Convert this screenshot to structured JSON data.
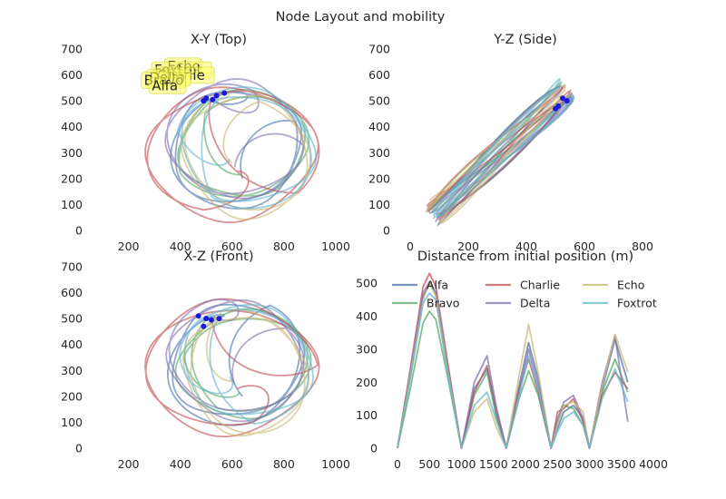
{
  "figure": {
    "title": "Node Layout and mobility"
  },
  "colors": {
    "Alfa": "#4c72b0",
    "Bravo": "#55a868",
    "Charlie": "#c44e52",
    "Delta": "#8172b2",
    "Echo": "#ccb974",
    "Foxtrot": "#64b5cd",
    "marker": "#1a1adf",
    "tag_fill": "#ffff66",
    "tag_edge": "#d8d840"
  },
  "chart_data": [
    {
      "type": "line",
      "panel": "xy",
      "title": "X-Y (Top)",
      "xlim": [
        100,
        1000
      ],
      "ylim": [
        0,
        700
      ],
      "xticks": [
        "200",
        "400",
        "600",
        "800",
        "1000"
      ],
      "yticks": [
        "0",
        "100",
        "200",
        "300",
        "400",
        "500",
        "600",
        "700"
      ],
      "grid": false,
      "tags": [
        {
          "label": "Echo",
          "x": 560,
          "y": 585
        },
        {
          "label": "Foxtrot",
          "x": 510,
          "y": 570
        },
        {
          "label": "Charlie",
          "x": 520,
          "y": 550
        },
        {
          "label": "Delta",
          "x": 490,
          "y": 540
        },
        {
          "label": "Bravo",
          "x": 470,
          "y": 530
        },
        {
          "label": "Alfa",
          "x": 500,
          "y": 510
        }
      ],
      "markers": [
        {
          "x": 570,
          "y": 530
        },
        {
          "x": 540,
          "y": 520
        },
        {
          "x": 500,
          "y": 510
        },
        {
          "x": 525,
          "y": 505
        },
        {
          "x": 490,
          "y": 500
        }
      ]
    },
    {
      "type": "line",
      "panel": "yz",
      "title": "Y-Z (Side)",
      "xlim": [
        0,
        800
      ],
      "ylim": [
        0,
        700
      ],
      "xticks": [
        "0",
        "200",
        "400",
        "600",
        "800"
      ],
      "yticks": [
        "0",
        "100",
        "200",
        "300",
        "400",
        "500",
        "600",
        "700"
      ],
      "grid": false,
      "markers": [
        {
          "x": 540,
          "y": 500
        },
        {
          "x": 510,
          "y": 480
        },
        {
          "x": 525,
          "y": 510
        },
        {
          "x": 500,
          "y": 470
        }
      ]
    },
    {
      "type": "line",
      "panel": "xz",
      "title": "X-Z (Front)",
      "xlim": [
        100,
        1000
      ],
      "ylim": [
        0,
        700
      ],
      "xticks": [
        "200",
        "400",
        "600",
        "800",
        "1000"
      ],
      "yticks": [
        "0",
        "100",
        "200",
        "300",
        "400",
        "500",
        "600",
        "700"
      ],
      "grid": false,
      "markers": [
        {
          "x": 470,
          "y": 510
        },
        {
          "x": 500,
          "y": 500
        },
        {
          "x": 520,
          "y": 495
        },
        {
          "x": 490,
          "y": 470
        },
        {
          "x": 550,
          "y": 500
        }
      ]
    },
    {
      "type": "line",
      "panel": "dist",
      "title": "Distance from initial position (m)",
      "xlim": [
        0,
        4000
      ],
      "ylim": [
        0,
        550
      ],
      "xticks": [
        "0",
        "500",
        "1000",
        "1500",
        "2000",
        "2500",
        "3000",
        "3500",
        "4000"
      ],
      "yticks": [
        "0",
        "100",
        "200",
        "300",
        "400",
        "500"
      ],
      "grid": false,
      "legend": "top, 3 columns",
      "legend_order": [
        "Alfa",
        "Charlie",
        "Echo",
        "Bravo",
        "Delta",
        "Foxtrot"
      ],
      "x": [
        0,
        200,
        400,
        500,
        600,
        800,
        1000,
        1200,
        1400,
        1550,
        1700,
        1900,
        2050,
        2200,
        2400,
        2500,
        2600,
        2750,
        2900,
        3000,
        3200,
        3400,
        3600
      ],
      "series": [
        {
          "name": "Alfa",
          "values": [
            0,
            220,
            460,
            500,
            470,
            230,
            0,
            180,
            240,
            100,
            0,
            190,
            320,
            210,
            0,
            60,
            110,
            130,
            90,
            0,
            180,
            330,
            200
          ]
        },
        {
          "name": "Bravo",
          "values": [
            0,
            180,
            380,
            415,
            390,
            200,
            0,
            160,
            230,
            90,
            0,
            150,
            235,
            160,
            0,
            80,
            130,
            120,
            70,
            0,
            170,
            270,
            170
          ]
        },
        {
          "name": "Charlie",
          "values": [
            0,
            240,
            490,
            530,
            490,
            240,
            0,
            170,
            250,
            110,
            0,
            180,
            270,
            170,
            0,
            110,
            120,
            150,
            80,
            0,
            160,
            230,
            180
          ]
        },
        {
          "name": "Delta",
          "values": [
            0,
            230,
            470,
            505,
            470,
            230,
            0,
            200,
            280,
            120,
            0,
            170,
            300,
            190,
            0,
            90,
            140,
            160,
            90,
            0,
            200,
            340,
            80
          ]
        },
        {
          "name": "Echo",
          "values": [
            0,
            220,
            450,
            500,
            460,
            220,
            0,
            110,
            150,
            60,
            0,
            220,
            375,
            230,
            0,
            70,
            130,
            140,
            110,
            0,
            190,
            345,
            230
          ]
        },
        {
          "name": "Foxtrot",
          "values": [
            0,
            210,
            440,
            470,
            450,
            210,
            0,
            130,
            170,
            80,
            0,
            160,
            280,
            180,
            0,
            50,
            90,
            110,
            70,
            0,
            150,
            240,
            140
          ]
        }
      ]
    }
  ]
}
